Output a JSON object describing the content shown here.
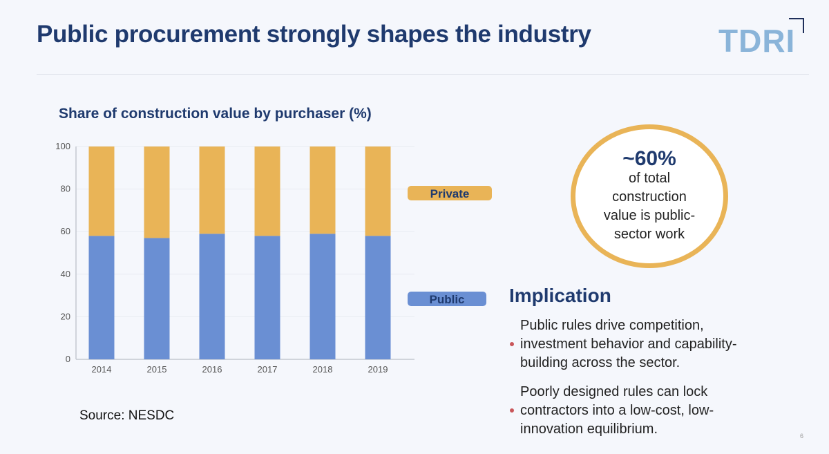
{
  "slide": {
    "title": "Public procurement strongly shapes the industry",
    "logo_text": "TDRI",
    "source": "Source: NESDC",
    "page_number": "6"
  },
  "callout": {
    "headline": "~60%",
    "text": "of total construction value is public-sector work"
  },
  "implication": {
    "heading": "Implication",
    "bullets": [
      "Public rules drive competition, investment behavior and capability-building across the sector.",
      "Poorly designed rules can lock contractors into a low-cost, low-innovation equilibrium."
    ]
  },
  "chart_data": {
    "type": "bar",
    "stacked": true,
    "title": "Share of construction value by purchaser (%)",
    "categories": [
      "2014",
      "2015",
      "2016",
      "2017",
      "2018",
      "2019"
    ],
    "series": [
      {
        "name": "Public",
        "values": [
          58,
          57,
          59,
          58,
          59,
          58
        ],
        "color": "#6a8fd3"
      },
      {
        "name": "Private",
        "values": [
          42,
          43,
          41,
          42,
          41,
          42
        ],
        "color": "#e9b457"
      }
    ],
    "ylim": [
      0,
      100
    ],
    "yticks": [
      "0",
      "20",
      "40",
      "60",
      "80",
      "100"
    ],
    "grid": true,
    "legend_placement": "right"
  }
}
